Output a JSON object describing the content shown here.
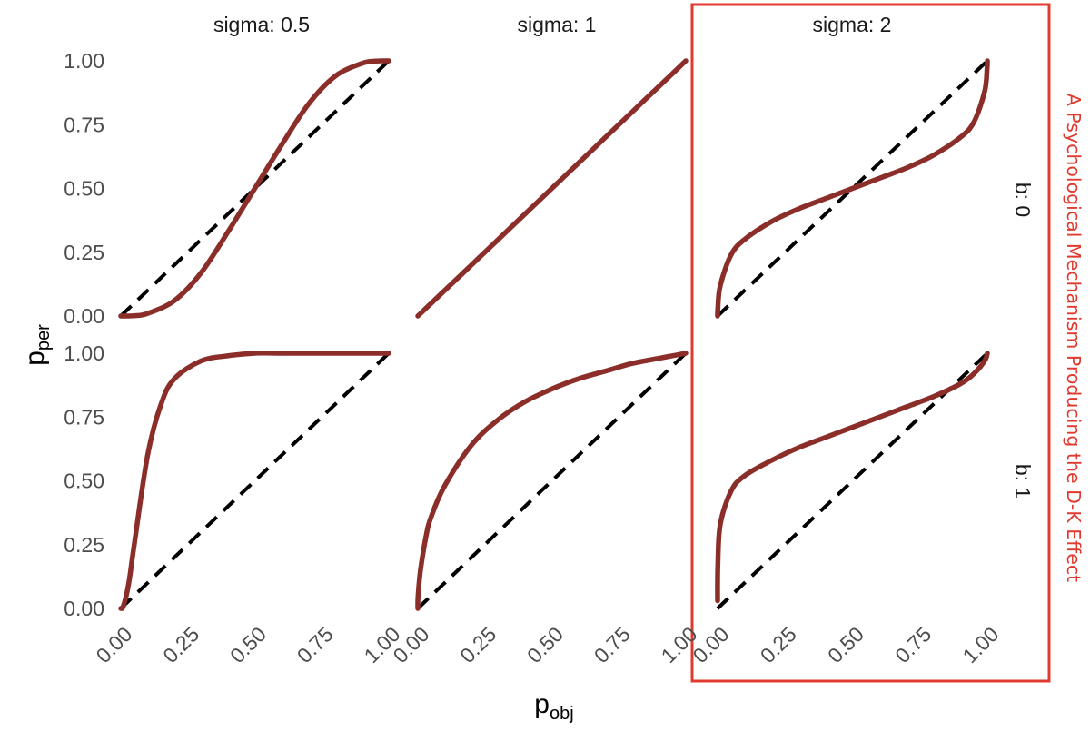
{
  "chart_data": {
    "type": "line",
    "facet_cols": {
      "label_prefix": "sigma: ",
      "values": [
        0.5,
        1,
        2
      ],
      "labels": [
        "sigma: 0.5",
        "sigma: 1",
        "sigma: 2"
      ]
    },
    "facet_rows": {
      "label_prefix": "b: ",
      "values": [
        0,
        1
      ],
      "labels": [
        "b: 0",
        "b: 1"
      ]
    },
    "xlabel": {
      "main": "p",
      "sub": "obj"
    },
    "ylabel": {
      "main": "p",
      "sub": "per"
    },
    "x_ticks": [
      "0.00",
      "0.25",
      "0.50",
      "0.75",
      "1.00"
    ],
    "y_ticks": [
      "0.00",
      "0.25",
      "0.50",
      "0.75",
      "1.00"
    ],
    "xlim": [
      0,
      1
    ],
    "ylim": [
      0,
      1
    ],
    "grid": false,
    "reference_line": {
      "style": "dashed",
      "color": "#000000",
      "from": [
        0,
        0
      ],
      "to": [
        1,
        1
      ]
    },
    "curve_color": "#8b2e2a",
    "annotation": {
      "text": "A Psychological Mechanism Producing the D-K Effect",
      "color": "#e03a2f",
      "highlights_column": "sigma: 2"
    },
    "panels": [
      {
        "row": 0,
        "col": 0,
        "sigma": 0.5,
        "b": 0,
        "x": [
          0,
          0.05,
          0.1,
          0.2,
          0.3,
          0.4,
          0.5,
          0.6,
          0.7,
          0.8,
          0.9,
          0.95,
          1
        ],
        "y": [
          0,
          0.001,
          0.01,
          0.06,
          0.17,
          0.33,
          0.5,
          0.67,
          0.83,
          0.94,
          0.99,
          0.999,
          1
        ]
      },
      {
        "row": 0,
        "col": 1,
        "sigma": 1,
        "b": 0,
        "x": [
          0,
          0.05,
          0.1,
          0.2,
          0.3,
          0.4,
          0.5,
          0.6,
          0.7,
          0.8,
          0.9,
          0.95,
          1
        ],
        "y": [
          0,
          0.05,
          0.1,
          0.2,
          0.3,
          0.4,
          0.5,
          0.6,
          0.7,
          0.8,
          0.9,
          0.95,
          1
        ]
      },
      {
        "row": 0,
        "col": 2,
        "sigma": 2,
        "b": 0,
        "x": [
          0,
          0.001,
          0.01,
          0.05,
          0.1,
          0.2,
          0.3,
          0.4,
          0.5,
          0.6,
          0.7,
          0.8,
          0.9,
          0.95,
          0.99,
          0.999,
          1
        ],
        "y": [
          0,
          0.03,
          0.12,
          0.24,
          0.3,
          0.37,
          0.42,
          0.46,
          0.5,
          0.54,
          0.58,
          0.63,
          0.7,
          0.76,
          0.88,
          0.97,
          1
        ]
      },
      {
        "row": 1,
        "col": 0,
        "sigma": 0.5,
        "b": 1,
        "x": [
          0,
          0.01,
          0.03,
          0.05,
          0.1,
          0.15,
          0.2,
          0.3,
          0.4,
          0.5,
          0.6,
          0.7,
          0.8,
          0.9,
          1
        ],
        "y": [
          0,
          0.01,
          0.1,
          0.25,
          0.6,
          0.8,
          0.9,
          0.97,
          0.99,
          1,
          1,
          1,
          1,
          1,
          1
        ]
      },
      {
        "row": 1,
        "col": 1,
        "sigma": 1,
        "b": 1,
        "x": [
          0,
          0.001,
          0.01,
          0.03,
          0.05,
          0.1,
          0.2,
          0.3,
          0.4,
          0.5,
          0.6,
          0.7,
          0.8,
          0.9,
          0.95,
          1
        ],
        "y": [
          0,
          0.05,
          0.15,
          0.28,
          0.36,
          0.48,
          0.64,
          0.74,
          0.81,
          0.86,
          0.9,
          0.93,
          0.96,
          0.98,
          0.99,
          1
        ]
      },
      {
        "row": 1,
        "col": 2,
        "sigma": 2,
        "b": 1,
        "x": [
          0,
          0.001,
          0.01,
          0.05,
          0.1,
          0.2,
          0.3,
          0.4,
          0.5,
          0.6,
          0.7,
          0.8,
          0.9,
          0.95,
          0.99,
          1
        ],
        "y": [
          0.03,
          0.17,
          0.33,
          0.46,
          0.52,
          0.58,
          0.63,
          0.67,
          0.71,
          0.75,
          0.79,
          0.83,
          0.88,
          0.92,
          0.97,
          1
        ]
      }
    ]
  }
}
